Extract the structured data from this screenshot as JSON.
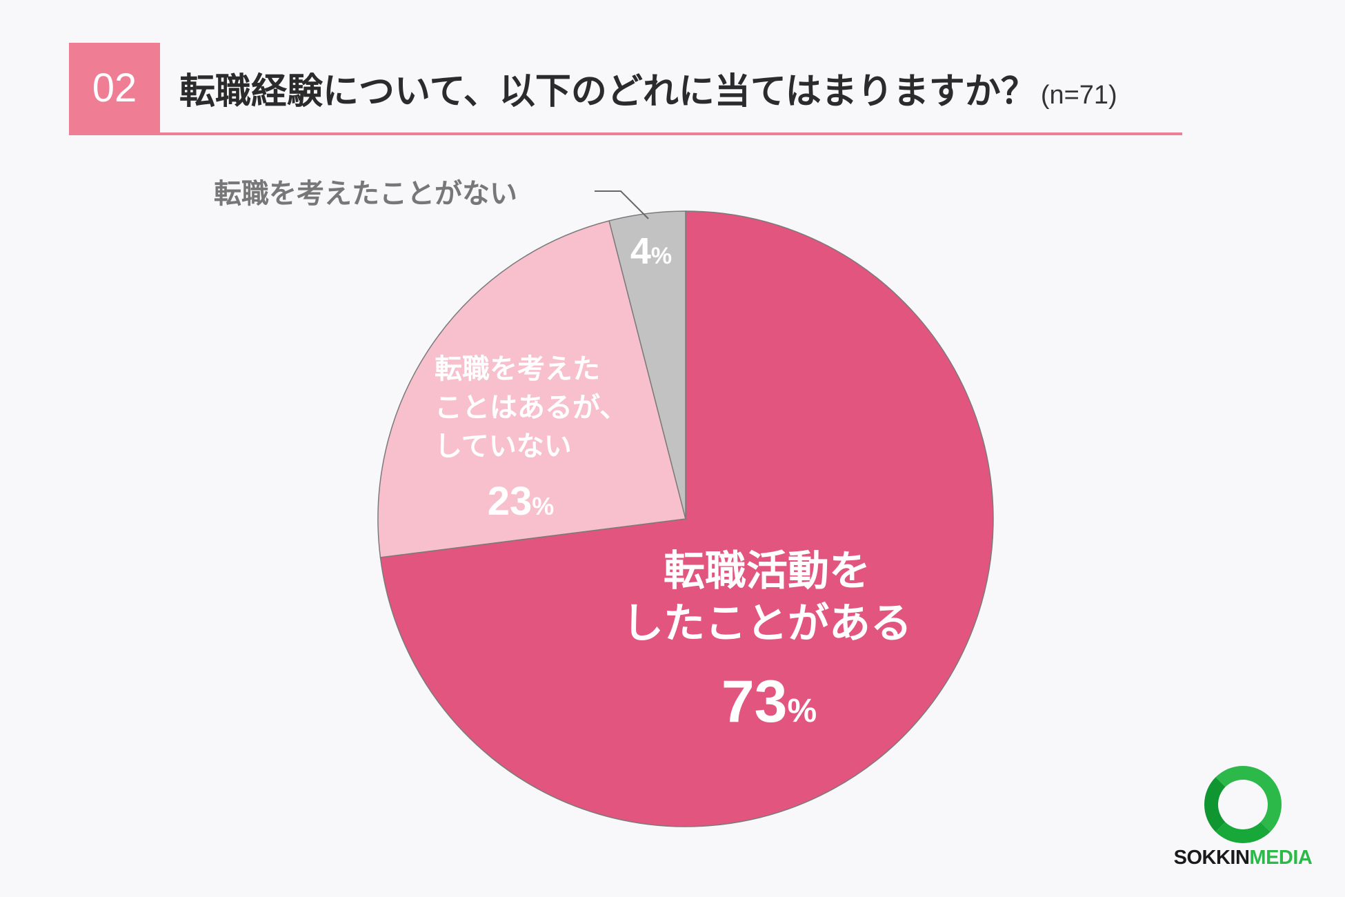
{
  "header": {
    "number": "02",
    "title": "転職経験について、以下のどれに当てはまりますか？",
    "sample": "(n=71)"
  },
  "colors": {
    "accent": "#ef7d94",
    "slices": [
      "#e2557e",
      "#f7c0cc",
      "#c2c2c2"
    ]
  },
  "chart_data": {
    "type": "pie",
    "unit": "%",
    "slices": [
      {
        "label_lines": [
          "転職活動を",
          "したことがある"
        ],
        "value": 73,
        "value_text": "73",
        "color": "#e2557e"
      },
      {
        "label_lines": [
          "転職を考えた",
          "ことはあるが、",
          "していない"
        ],
        "value": 23,
        "value_text": "23",
        "color": "#f7c0cc"
      },
      {
        "label_lines": [
          "転職を考えたことがない"
        ],
        "value": 4,
        "value_text": "4",
        "color": "#c2c2c2"
      }
    ]
  },
  "logo": {
    "part1": "SOKKIN",
    "part2": "MEDIA"
  }
}
